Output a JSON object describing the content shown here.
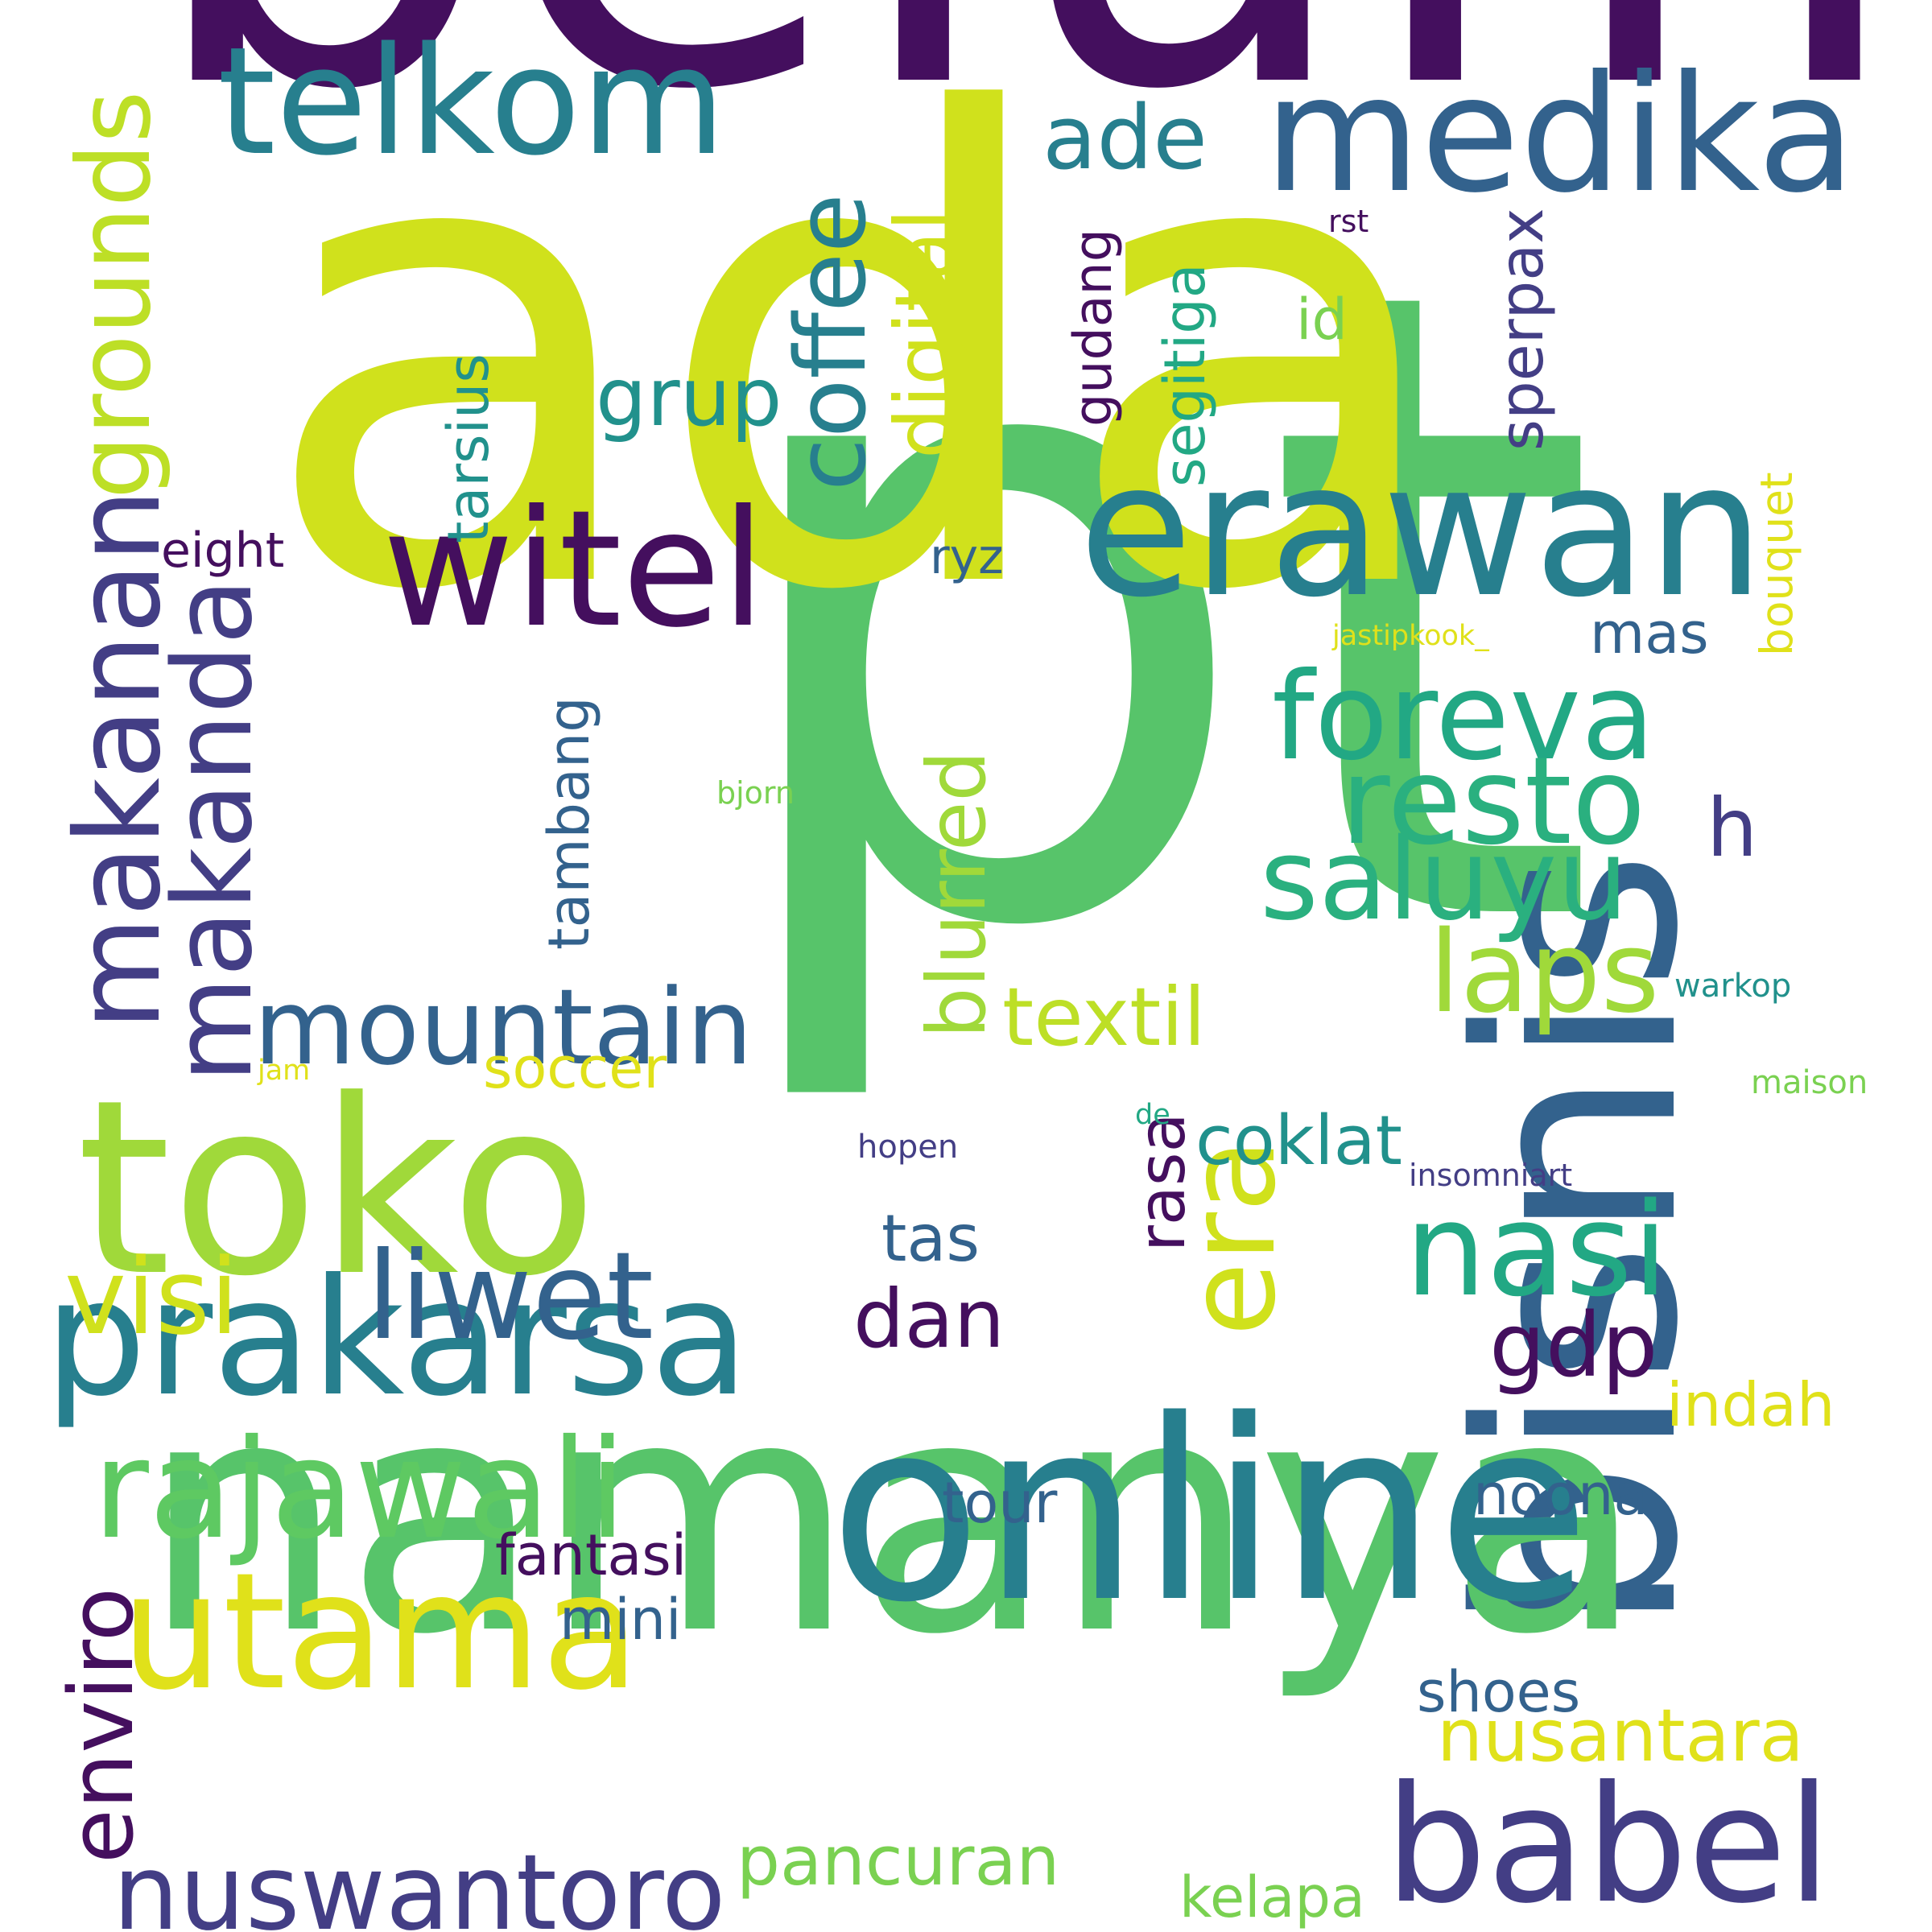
{
  "word_cloud": {
    "words": [
      {
        "text": "belum",
        "color": "#440f5e"
      },
      {
        "text": "pt",
        "color": "#57c46a"
      },
      {
        "text": "ada",
        "color": "#d0e11c"
      },
      {
        "text": "bisnis",
        "color": "#33628d"
      },
      {
        "text": "namanya",
        "color": "#57c46a"
      },
      {
        "text": "online",
        "color": "#277f8e"
      },
      {
        "text": "toko",
        "color": "#a0d93a"
      },
      {
        "text": "erawan",
        "color": "#277f8e"
      },
      {
        "text": "medika",
        "color": "#33628d"
      },
      {
        "text": "telkom",
        "color": "#277f8e"
      },
      {
        "text": "witel",
        "color": "#440f5e"
      },
      {
        "text": "prakarsa",
        "color": "#277f8e"
      },
      {
        "text": "utama",
        "color": "#e0e11a"
      },
      {
        "text": "babel",
        "color": "#433e85"
      },
      {
        "text": "rajawali",
        "color": "#5ec962"
      },
      {
        "text": "nuswantoro",
        "color": "#433e85"
      },
      {
        "text": "liwet",
        "color": "#33628d"
      },
      {
        "text": "nasi",
        "color": "#22a884"
      },
      {
        "text": "foreva",
        "color": "#22a884"
      },
      {
        "text": "resto",
        "color": "#2ab07f"
      },
      {
        "text": "saluyu",
        "color": "#2ab07f"
      },
      {
        "text": "mountain",
        "color": "#33628d"
      },
      {
        "text": "visi",
        "color": "#d0e11c"
      },
      {
        "text": "laps",
        "color": "#a0d93a"
      },
      {
        "text": "era",
        "color": "#d0e11c"
      },
      {
        "text": "makanan",
        "color": "#433e85"
      },
      {
        "text": "makanda",
        "color": "#433e85"
      },
      {
        "text": "coffee",
        "color": "#277f8e"
      },
      {
        "text": "grounds",
        "color": "#bddf26"
      },
      {
        "text": "digital",
        "color": "#d0e11c"
      },
      {
        "text": "ade",
        "color": "#277f8e"
      },
      {
        "text": "grup",
        "color": "#21918c"
      },
      {
        "text": "blurred",
        "color": "#a0d93a"
      },
      {
        "text": "enviro",
        "color": "#440f5e"
      },
      {
        "text": "gdp",
        "color": "#440f5e"
      },
      {
        "text": "textil",
        "color": "#bddf26"
      },
      {
        "text": "coklat",
        "color": "#21918c"
      },
      {
        "text": "h",
        "color": "#433e85"
      },
      {
        "text": "dan",
        "color": "#440f5e"
      },
      {
        "text": "nusantara",
        "color": "#e0e11a"
      },
      {
        "text": "pancuran",
        "color": "#7ad151"
      },
      {
        "text": "rasa",
        "color": "#440f5e"
      },
      {
        "text": "tas",
        "color": "#33628d"
      },
      {
        "text": "tarsius",
        "color": "#21918c"
      },
      {
        "text": "segitiga",
        "color": "#22a884"
      },
      {
        "text": "gudang",
        "color": "#440f5e"
      },
      {
        "text": "sperpax",
        "color": "#433e85"
      },
      {
        "text": "tambang",
        "color": "#33628d"
      },
      {
        "text": "indah",
        "color": "#e0e11a"
      },
      {
        "text": "soccer",
        "color": "#e0e11a"
      },
      {
        "text": "fantasi",
        "color": "#440f5e"
      },
      {
        "text": "mini",
        "color": "#33628d"
      },
      {
        "text": "shoes",
        "color": "#33628d"
      },
      {
        "text": "noona",
        "color": "#33628d"
      },
      {
        "text": "tour",
        "color": "#33628d"
      },
      {
        "text": "kelapa",
        "color": "#7ad151"
      },
      {
        "text": "eight",
        "color": "#440f5e"
      },
      {
        "text": "id",
        "color": "#7ad151"
      },
      {
        "text": "mas",
        "color": "#33628d"
      },
      {
        "text": "ryz",
        "color": "#33628d"
      },
      {
        "text": "bouquet",
        "color": "#e0e11a"
      },
      {
        "text": "jastipkook_",
        "color": "#e0e11a"
      },
      {
        "text": "bjorn",
        "color": "#7ad151"
      },
      {
        "text": "warkop",
        "color": "#21918c"
      },
      {
        "text": "maison",
        "color": "#7ad151"
      },
      {
        "text": "jam",
        "color": "#e0e11a"
      },
      {
        "text": "de",
        "color": "#22a884"
      },
      {
        "text": "hopen",
        "color": "#433e85"
      },
      {
        "text": "insomniart",
        "color": "#433e85"
      },
      {
        "text": "rst",
        "color": "#440f5e"
      }
    ]
  }
}
